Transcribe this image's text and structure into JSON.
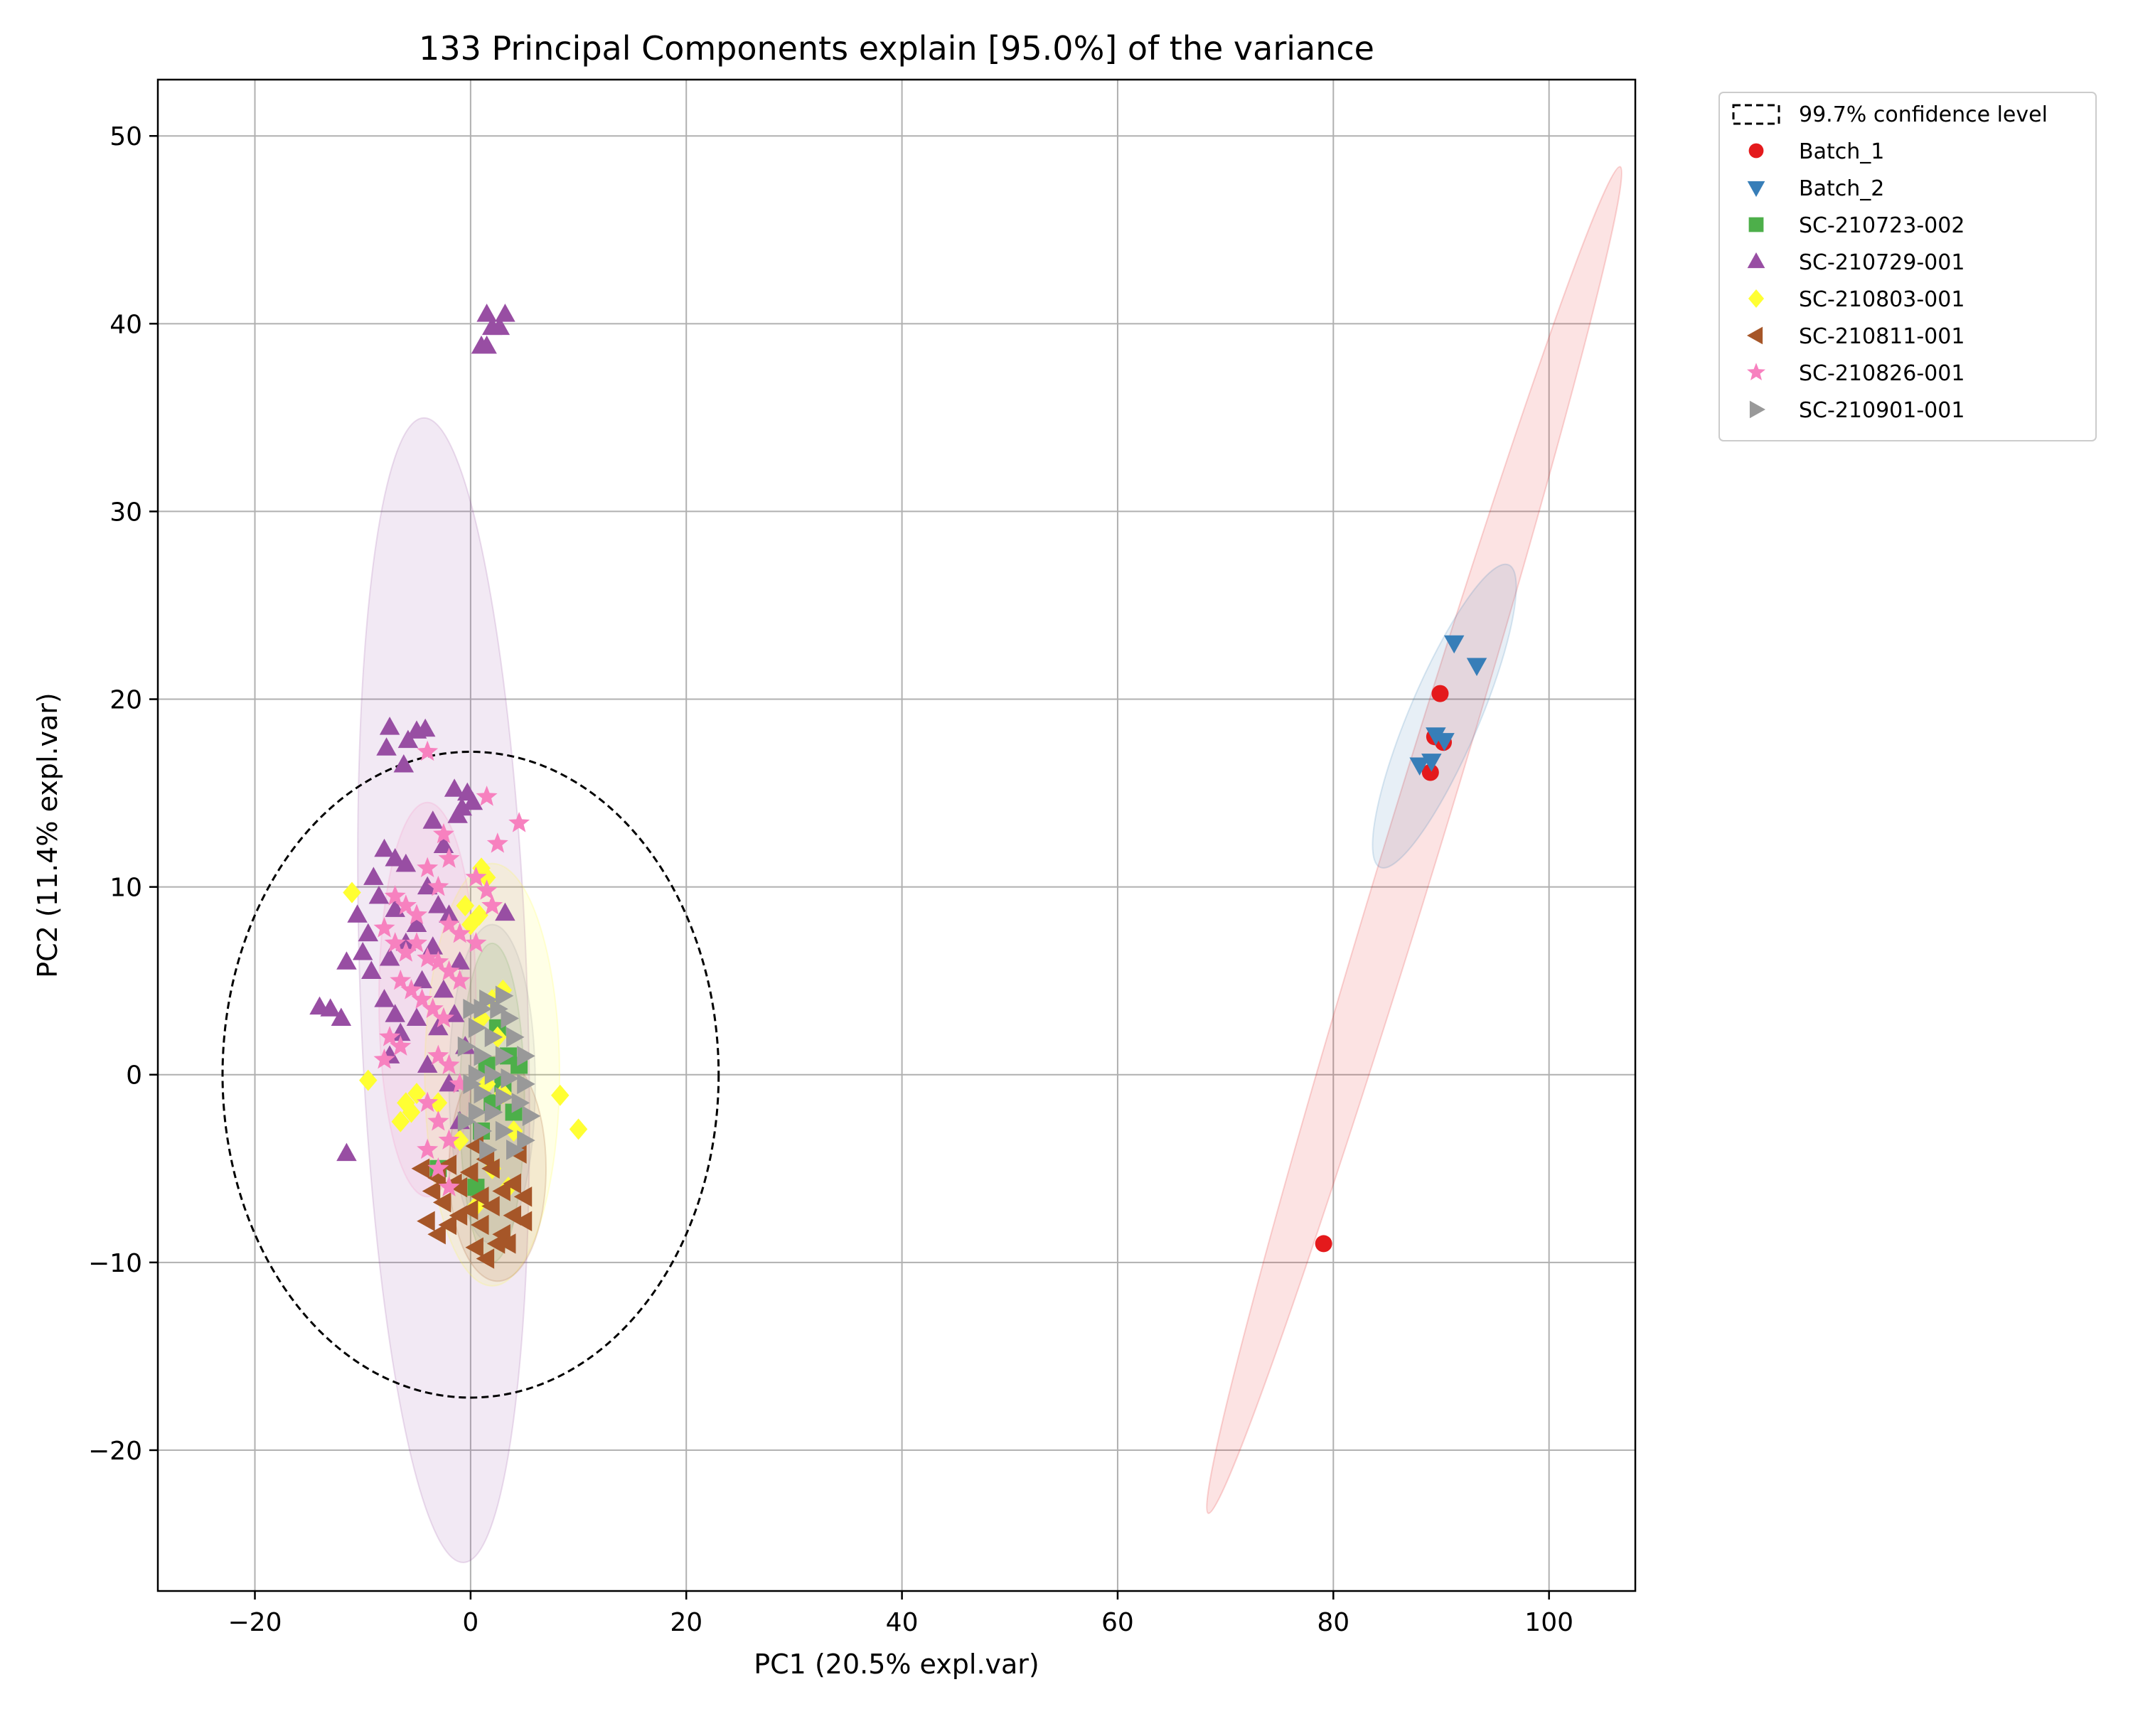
{
  "chart_data": {
    "type": "scatter",
    "title": "133 Principal Components explain [95.0%] of the variance",
    "xlabel": "PC1 (20.5% expl.var)",
    "ylabel": "PC2 (11.4% expl.var)",
    "xlim": [
      -29,
      108
    ],
    "ylim": [
      -27.5,
      53
    ],
    "xticks": [
      -20,
      0,
      20,
      40,
      60,
      80,
      100
    ],
    "yticks": [
      -20,
      -10,
      0,
      10,
      20,
      30,
      40,
      50
    ],
    "xtick_labels": [
      "−20",
      "0",
      "20",
      "40",
      "60",
      "80",
      "100"
    ],
    "ytick_labels": [
      "−20",
      "−10",
      "0",
      "10",
      "20",
      "30",
      "40",
      "50"
    ],
    "grid": true,
    "legend_position": "outside top-right",
    "confidence_ellipse": {
      "label": "99.7% confidence level",
      "center": [
        0,
        0
      ],
      "width": 46,
      "height": 34.4
    },
    "series": [
      {
        "name": "Batch_1",
        "marker": "circle",
        "color": "#e41a1c",
        "ellipse": {
          "center": [
            87.5,
            12.5
          ],
          "width": 5.0,
          "height": 75.0,
          "angle": 17
        },
        "points": [
          [
            89.9,
            20.3
          ],
          [
            89.4,
            18.0
          ],
          [
            90.2,
            17.7
          ],
          [
            89.0,
            16.1
          ],
          [
            79.1,
            -9.0
          ]
        ]
      },
      {
        "name": "Batch_2",
        "marker": "triangle-down",
        "color": "#377eb8",
        "ellipse": {
          "center": [
            90.3,
            19.1
          ],
          "width": 6.5,
          "height": 17.5,
          "angle": 23
        },
        "points": [
          [
            91.2,
            23.0
          ],
          [
            93.3,
            21.8
          ],
          [
            89.5,
            18.1
          ],
          [
            90.3,
            17.8
          ],
          [
            88.0,
            16.5
          ],
          [
            89.1,
            16.7
          ]
        ]
      },
      {
        "name": "SC-210723-002",
        "marker": "square",
        "color": "#4daf4a",
        "ellipse": {
          "center": [
            2.0,
            -1.5
          ],
          "width": 6.0,
          "height": 17.0,
          "angle": 0
        },
        "points": [
          [
            1.5,
            0.5
          ],
          [
            3.0,
            -0.5
          ],
          [
            2.0,
            -1.5
          ],
          [
            4.0,
            -2.0
          ],
          [
            1.0,
            -3.0
          ],
          [
            3.5,
            1.0
          ],
          [
            -3.0,
            -5.0
          ],
          [
            2.5,
            2.5
          ],
          [
            0.5,
            -6.0
          ],
          [
            4.5,
            0.5
          ]
        ]
      },
      {
        "name": "SC-210729-001",
        "marker": "triangle-up",
        "color": "#984ea3",
        "ellipse": {
          "center": [
            -2.5,
            4.5
          ],
          "width": 15.5,
          "height": 61.0,
          "angle": -2
        },
        "points": [
          [
            1.5,
            40.5
          ],
          [
            3.2,
            40.5
          ],
          [
            2.0,
            39.8
          ],
          [
            2.7,
            39.8
          ],
          [
            1.0,
            38.8
          ],
          [
            1.5,
            38.8
          ],
          [
            -7.5,
            18.5
          ],
          [
            -5.0,
            18.3
          ],
          [
            -4.2,
            18.4
          ],
          [
            -5.8,
            17.8
          ],
          [
            -7.8,
            17.4
          ],
          [
            -6.2,
            16.5
          ],
          [
            -1.5,
            15.2
          ],
          [
            -0.3,
            15.0
          ],
          [
            -0.8,
            14.2
          ],
          [
            0.2,
            14.5
          ],
          [
            -1.2,
            13.8
          ],
          [
            -3.5,
            13.5
          ],
          [
            -2.5,
            12.2
          ],
          [
            -8.0,
            12.0
          ],
          [
            -7.0,
            11.5
          ],
          [
            -6.0,
            11.2
          ],
          [
            -9.0,
            10.5
          ],
          [
            -8.5,
            9.5
          ],
          [
            -4.0,
            10.0
          ],
          [
            -10.5,
            8.5
          ],
          [
            -9.5,
            7.5
          ],
          [
            -7.0,
            8.8
          ],
          [
            -5.0,
            8.0
          ],
          [
            -3.0,
            9.0
          ],
          [
            -2.0,
            8.5
          ],
          [
            3.2,
            8.6
          ],
          [
            -10.0,
            6.5
          ],
          [
            -11.5,
            6.0
          ],
          [
            -9.2,
            5.5
          ],
          [
            -7.5,
            6.2
          ],
          [
            -6.0,
            7.0
          ],
          [
            -4.5,
            5.0
          ],
          [
            -3.5,
            6.8
          ],
          [
            -1.0,
            6.0
          ],
          [
            -2.5,
            4.5
          ],
          [
            -14.0,
            3.6
          ],
          [
            -13.0,
            3.5
          ],
          [
            -12.0,
            3.0
          ],
          [
            -8.0,
            4.0
          ],
          [
            -7.0,
            3.2
          ],
          [
            -6.5,
            2.2
          ],
          [
            -5.0,
            3.0
          ],
          [
            -3.0,
            2.5
          ],
          [
            -1.5,
            3.2
          ],
          [
            -0.5,
            1.5
          ],
          [
            -7.5,
            1.0
          ],
          [
            -4.0,
            0.5
          ],
          [
            -2.0,
            -0.5
          ],
          [
            -11.5,
            -4.2
          ],
          [
            -1.0,
            -2.5
          ]
        ]
      },
      {
        "name": "SC-210803-001",
        "marker": "diamond",
        "color": "#ffff33",
        "ellipse": {
          "center": [
            2.0,
            0.0
          ],
          "width": 12.5,
          "height": 22.5,
          "angle": 0
        },
        "points": [
          [
            1.0,
            11.0
          ],
          [
            1.5,
            10.5
          ],
          [
            -0.5,
            9.0
          ],
          [
            0.8,
            8.5
          ],
          [
            -11.0,
            9.7
          ],
          [
            0.0,
            8.0
          ],
          [
            3.0,
            4.5
          ],
          [
            2.0,
            4.0
          ],
          [
            1.0,
            3.0
          ],
          [
            2.5,
            2.0
          ],
          [
            -9.5,
            -0.3
          ],
          [
            -6.0,
            -1.5
          ],
          [
            -5.5,
            -2.0
          ],
          [
            -6.5,
            -2.5
          ],
          [
            -5.0,
            -1.0
          ],
          [
            -3.0,
            -1.5
          ],
          [
            8.3,
            -1.1
          ],
          [
            10.0,
            -2.9
          ],
          [
            1.5,
            -0.5
          ],
          [
            3.0,
            -1.0
          ],
          [
            -1.0,
            -3.5
          ],
          [
            4.0,
            -3.0
          ],
          [
            2.0,
            -5.0
          ],
          [
            3.5,
            -6.0
          ],
          [
            0.5,
            -7.0
          ]
        ]
      },
      {
        "name": "SC-210811-001",
        "marker": "triangle-left",
        "color": "#a65628",
        "ellipse": {
          "center": [
            2.5,
            -5.0
          ],
          "width": 9.0,
          "height": 12.0,
          "angle": 0
        },
        "points": [
          [
            -4.5,
            -5.0
          ],
          [
            -3.0,
            -5.5
          ],
          [
            -2.0,
            -4.8
          ],
          [
            -1.0,
            -6.0
          ],
          [
            0.0,
            -5.2
          ],
          [
            1.0,
            -6.5
          ],
          [
            2.0,
            -5.0
          ],
          [
            3.0,
            -6.2
          ],
          [
            4.0,
            -5.8
          ],
          [
            5.0,
            -6.5
          ],
          [
            -4.0,
            -7.8
          ],
          [
            -3.0,
            -8.5
          ],
          [
            -2.0,
            -8.0
          ],
          [
            -1.0,
            -7.5
          ],
          [
            0.0,
            -7.2
          ],
          [
            1.0,
            -8.0
          ],
          [
            2.0,
            -7.0
          ],
          [
            3.0,
            -8.5
          ],
          [
            4.0,
            -7.5
          ],
          [
            5.0,
            -7.8
          ],
          [
            1.5,
            -9.8
          ],
          [
            2.5,
            -9.0
          ],
          [
            -2.5,
            -6.8
          ],
          [
            0.5,
            -9.2
          ],
          [
            3.5,
            -9.0
          ],
          [
            -1.5,
            -5.8
          ],
          [
            1.5,
            -4.5
          ],
          [
            0.5,
            -3.8
          ],
          [
            4.5,
            -4.2
          ],
          [
            -3.5,
            -6.2
          ]
        ]
      },
      {
        "name": "SC-210826-001",
        "marker": "star",
        "color": "#f781bf",
        "ellipse": {
          "center": [
            -4.0,
            4.0
          ],
          "width": 9.0,
          "height": 21.0,
          "angle": 0
        },
        "points": [
          [
            -4.0,
            17.2
          ],
          [
            1.5,
            14.8
          ],
          [
            4.5,
            13.4
          ],
          [
            2.5,
            12.3
          ],
          [
            -2.5,
            12.8
          ],
          [
            -2.0,
            11.5
          ],
          [
            -4.0,
            11.0
          ],
          [
            -3.0,
            10.0
          ],
          [
            1.5,
            9.8
          ],
          [
            -7.0,
            9.5
          ],
          [
            -6.0,
            9.0
          ],
          [
            -5.0,
            8.5
          ],
          [
            -2.0,
            8.0
          ],
          [
            -1.0,
            7.5
          ],
          [
            0.5,
            7.0
          ],
          [
            -8.0,
            7.8
          ],
          [
            -7.0,
            7.0
          ],
          [
            -6.0,
            6.5
          ],
          [
            -5.0,
            7.0
          ],
          [
            -4.0,
            6.2
          ],
          [
            -3.0,
            6.0
          ],
          [
            -2.0,
            5.5
          ],
          [
            -1.0,
            5.0
          ],
          [
            -6.5,
            5.0
          ],
          [
            -5.5,
            4.5
          ],
          [
            -4.5,
            4.0
          ],
          [
            -3.5,
            3.5
          ],
          [
            -2.5,
            3.0
          ],
          [
            -7.5,
            2.0
          ],
          [
            -6.5,
            1.5
          ],
          [
            -8.0,
            0.8
          ],
          [
            -3.0,
            1.0
          ],
          [
            -2.0,
            0.5
          ],
          [
            -1.0,
            -0.5
          ],
          [
            -4.0,
            -1.5
          ],
          [
            -3.0,
            -2.5
          ],
          [
            -2.0,
            -3.5
          ],
          [
            -4.0,
            -4.0
          ],
          [
            -3.0,
            -5.0
          ],
          [
            -2.0,
            -6.0
          ],
          [
            0.5,
            10.5
          ],
          [
            2.0,
            9.0
          ]
        ]
      },
      {
        "name": "SC-210901-001",
        "marker": "triangle-right",
        "color": "#999999",
        "ellipse": {
          "center": [
            2.0,
            -0.5
          ],
          "width": 8.0,
          "height": 17.0,
          "angle": 0
        },
        "points": [
          [
            1.5,
            4.0
          ],
          [
            3.0,
            4.2
          ],
          [
            1.0,
            3.5
          ],
          [
            3.5,
            3.0
          ],
          [
            0.5,
            2.5
          ],
          [
            2.0,
            2.0
          ],
          [
            4.0,
            2.0
          ],
          [
            1.0,
            1.0
          ],
          [
            3.0,
            1.0
          ],
          [
            5.0,
            1.0
          ],
          [
            0.5,
            0.0
          ],
          [
            2.0,
            0.0
          ],
          [
            3.5,
            -0.2
          ],
          [
            5.0,
            -0.5
          ],
          [
            1.0,
            -1.0
          ],
          [
            3.0,
            -1.2
          ],
          [
            4.5,
            -1.5
          ],
          [
            0.5,
            -2.0
          ],
          [
            2.0,
            -2.0
          ],
          [
            5.5,
            -2.2
          ],
          [
            1.0,
            -3.0
          ],
          [
            3.0,
            -3.0
          ],
          [
            5.0,
            -3.5
          ],
          [
            1.5,
            -4.0
          ],
          [
            4.0,
            -4.0
          ],
          [
            0.0,
            3.5
          ],
          [
            2.5,
            3.5
          ],
          [
            -0.5,
            1.5
          ],
          [
            0.0,
            -0.5
          ],
          [
            -0.5,
            -2.5
          ]
        ]
      }
    ]
  }
}
